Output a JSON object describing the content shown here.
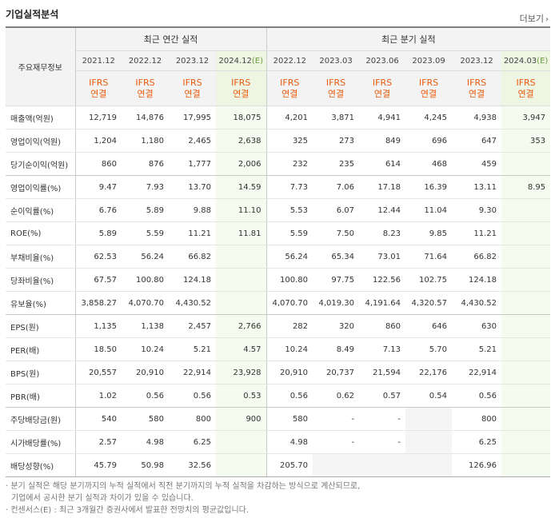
{
  "title": "기업실적분석",
  "more_label": "더보기",
  "more_arrow": "›",
  "header": {
    "row_label": "주요재무정보",
    "annual_label": "최근 연간 실적",
    "quarter_label": "최근 분기 실적",
    "periods": [
      "2021.12",
      "2022.12",
      "2023.12",
      "2024.12",
      "2022.12",
      "2023.03",
      "2023.06",
      "2023.09",
      "2023.12",
      "2024.03"
    ],
    "estimate_mark": "(E)",
    "ifrs": "IFRS",
    "consolidated": "연결"
  },
  "rows": [
    {
      "label": "매출액(억원)",
      "values": [
        "12,719",
        "14,876",
        "17,995",
        "18,075",
        "4,201",
        "3,871",
        "4,941",
        "4,245",
        "4,938",
        "3,947"
      ]
    },
    {
      "label": "영업이익(억원)",
      "values": [
        "1,204",
        "1,180",
        "2,465",
        "2,638",
        "325",
        "273",
        "849",
        "696",
        "647",
        "353"
      ]
    },
    {
      "label": "당기순이익(억원)",
      "values": [
        "860",
        "876",
        "1,777",
        "2,006",
        "232",
        "235",
        "614",
        "468",
        "459",
        ""
      ]
    },
    {
      "label": "영업이익률(%)",
      "values": [
        "9.47",
        "7.93",
        "13.70",
        "14.59",
        "7.73",
        "7.06",
        "17.18",
        "16.39",
        "13.11",
        "8.95"
      ]
    },
    {
      "label": "순이익률(%)",
      "values": [
        "6.76",
        "5.89",
        "9.88",
        "11.10",
        "5.53",
        "6.07",
        "12.44",
        "11.04",
        "9.30",
        ""
      ]
    },
    {
      "label": "ROE(%)",
      "values": [
        "5.89",
        "5.59",
        "11.21",
        "11.81",
        "5.59",
        "7.50",
        "8.23",
        "9.85",
        "11.21",
        ""
      ]
    },
    {
      "label": "부채비율(%)",
      "values": [
        "62.53",
        "56.24",
        "66.82",
        "",
        "56.24",
        "65.34",
        "73.01",
        "71.64",
        "66.82",
        ""
      ]
    },
    {
      "label": "당좌비율(%)",
      "values": [
        "67.57",
        "100.80",
        "124.18",
        "",
        "100.80",
        "97.75",
        "122.56",
        "102.75",
        "124.18",
        ""
      ]
    },
    {
      "label": "유보율(%)",
      "values": [
        "3,858.27",
        "4,070.70",
        "4,430.52",
        "",
        "4,070.70",
        "4,019.30",
        "4,191.64",
        "4,320.57",
        "4,430.52",
        ""
      ]
    },
    {
      "label": "EPS(원)",
      "values": [
        "1,135",
        "1,138",
        "2,457",
        "2,766",
        "282",
        "320",
        "860",
        "646",
        "630",
        ""
      ]
    },
    {
      "label": "PER(배)",
      "values": [
        "18.50",
        "10.24",
        "5.21",
        "4.57",
        "10.24",
        "8.49",
        "7.13",
        "5.70",
        "5.21",
        ""
      ]
    },
    {
      "label": "BPS(원)",
      "values": [
        "20,557",
        "20,910",
        "22,914",
        "23,928",
        "20,910",
        "20,737",
        "21,594",
        "22,176",
        "22,914",
        ""
      ]
    },
    {
      "label": "PBR(배)",
      "values": [
        "1.02",
        "0.56",
        "0.56",
        "0.53",
        "0.56",
        "0.62",
        "0.57",
        "0.54",
        "0.56",
        ""
      ]
    },
    {
      "label": "주당배당금(원)",
      "values": [
        "540",
        "580",
        "800",
        "900",
        "580",
        "-",
        "-",
        "",
        "800",
        ""
      ]
    },
    {
      "label": "시가배당률(%)",
      "values": [
        "2.57",
        "4.98",
        "6.25",
        "",
        "4.98",
        "-",
        "-",
        "",
        "6.25",
        ""
      ]
    },
    {
      "label": "배당성향(%)",
      "values": [
        "45.79",
        "50.98",
        "32.56",
        "",
        "205.70",
        "",
        "",
        "",
        "126.96",
        ""
      ]
    }
  ],
  "notes": [
    "· 분기 실적은 해당 분기까지의 누적 실적에서 직전 분기까지의 누적 실적을 차감하는 방식으로 계산되므로,",
    "  기업에서 공시한 분기 실적과 차이가 있을 수 있습니다.",
    "· 컨센서스(E) : 최근 3개월간 증권사에서 발표한 전망치의 평균값입니다."
  ]
}
